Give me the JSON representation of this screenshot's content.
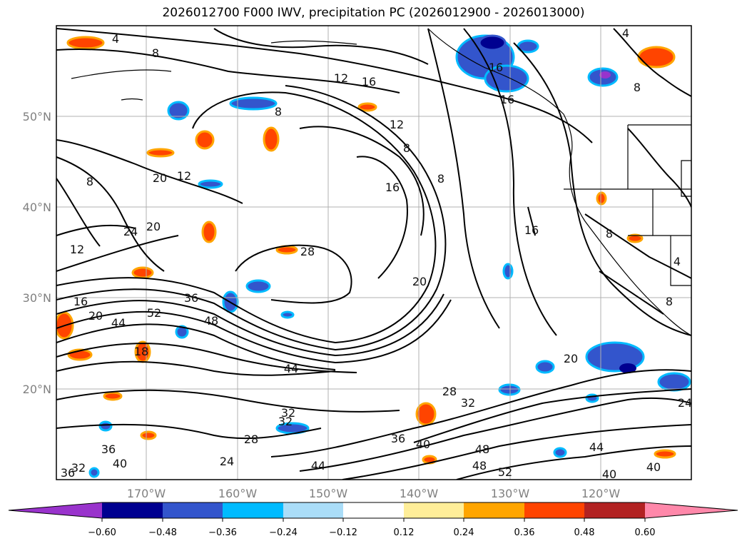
{
  "title": "2026012700 F000 IWV, precipitation PC (2026012900 - 2026013000)",
  "lat_labels": [
    "50°N",
    "40°N",
    "30°N",
    "20°N"
  ],
  "lon_labels": [
    "170°W",
    "160°W",
    "150°W",
    "140°W",
    "130°W",
    "120°W"
  ],
  "contour_labels": [
    "4",
    "8",
    "12",
    "16",
    "16",
    "16",
    "8",
    "12",
    "8",
    "8",
    "16",
    "8",
    "20",
    "12",
    "20",
    "24",
    "12",
    "16",
    "20",
    "44",
    "52",
    "36",
    "48",
    "18",
    "44",
    "32",
    "28",
    "36",
    "40",
    "48",
    "48",
    "52",
    "40",
    "32",
    "36",
    "40",
    "28",
    "32",
    "24",
    "28",
    "20",
    "44",
    "8",
    "4",
    "4",
    "8",
    "8",
    "16",
    "36",
    "32",
    "44",
    "40",
    "20",
    "24"
  ],
  "colorbar": {
    "ticks": [
      "−0.60",
      "−0.48",
      "−0.36",
      "−0.24",
      "−0.12",
      "0.12",
      "0.24",
      "0.36",
      "0.48",
      "0.60"
    ],
    "colors": {
      "under": "#9933cc",
      "b1": "#000090",
      "b2": "#3355cc",
      "b3": "#00bbff",
      "b4": "#aaddf8",
      "b5": "#ffffff",
      "b6": "#ffee99",
      "b7": "#ffa500",
      "b8": "#ff4400",
      "b9": "#b22222",
      "over": "#ff88aa"
    }
  }
}
